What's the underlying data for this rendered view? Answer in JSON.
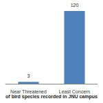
{
  "chart_data": {
    "type": "bar",
    "title": "of bird species recorded in JNU campus",
    "categories": [
      "Near Threatened",
      "Least Concern"
    ],
    "values": [
      3,
      120
    ],
    "color": "#4f81bd",
    "ylim": [
      0,
      120
    ],
    "grid": false,
    "data_labels": true,
    "tick_labels": "x"
  }
}
